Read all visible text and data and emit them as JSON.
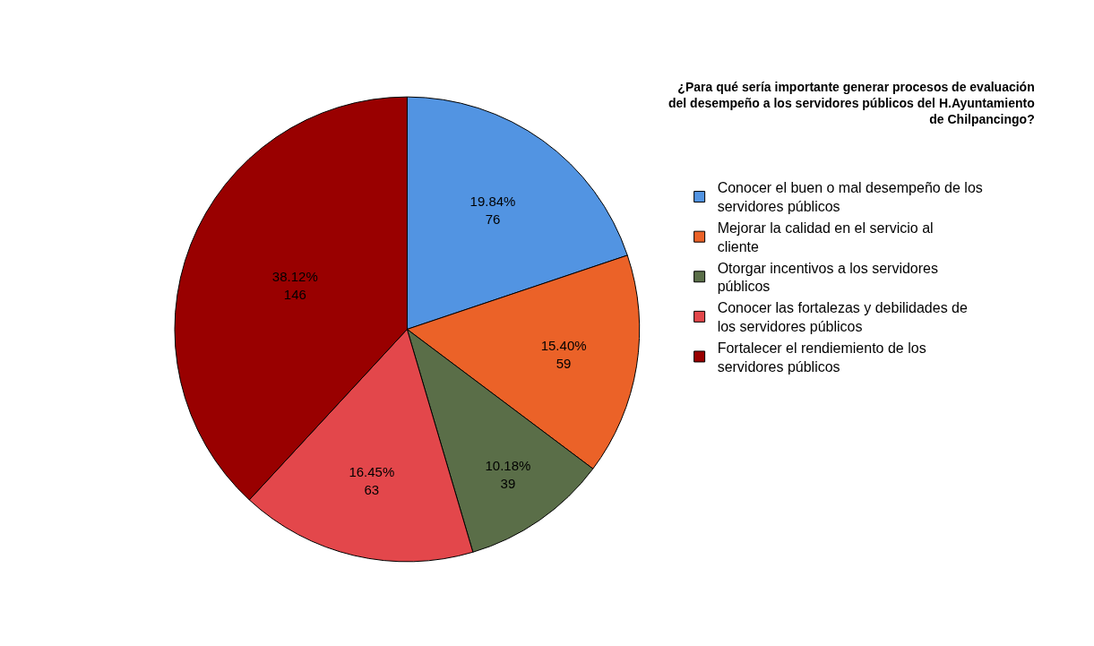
{
  "chart_data": {
    "type": "pie",
    "title": "¿Para qué sería importante generar procesos de evaluación del desempeño a los servidores públicos del H.Ayuntamiento de Chilpancingo?",
    "categories": [
      "Conocer el buen o mal desempeño de los servidores públicos",
      "Mejorar la calidad en el servicio al cliente",
      "Otorgar incentivos a los servidores públicos",
      "Conocer las fortalezas y debilidades de los servidores públicos",
      "Fortalecer el rendiemiento de los servidores públicos"
    ],
    "values": [
      76,
      59,
      39,
      63,
      146
    ],
    "colors": [
      "#5294e2",
      "#eb6228",
      "#5a6e48",
      "#e3474b",
      "#990000"
    ],
    "value_labels": [
      "19.84%\n76",
      "15.40%\n59",
      "10.18%\n39",
      "16.45%\n63",
      "38.12%\n146"
    ],
    "legend": "right"
  }
}
